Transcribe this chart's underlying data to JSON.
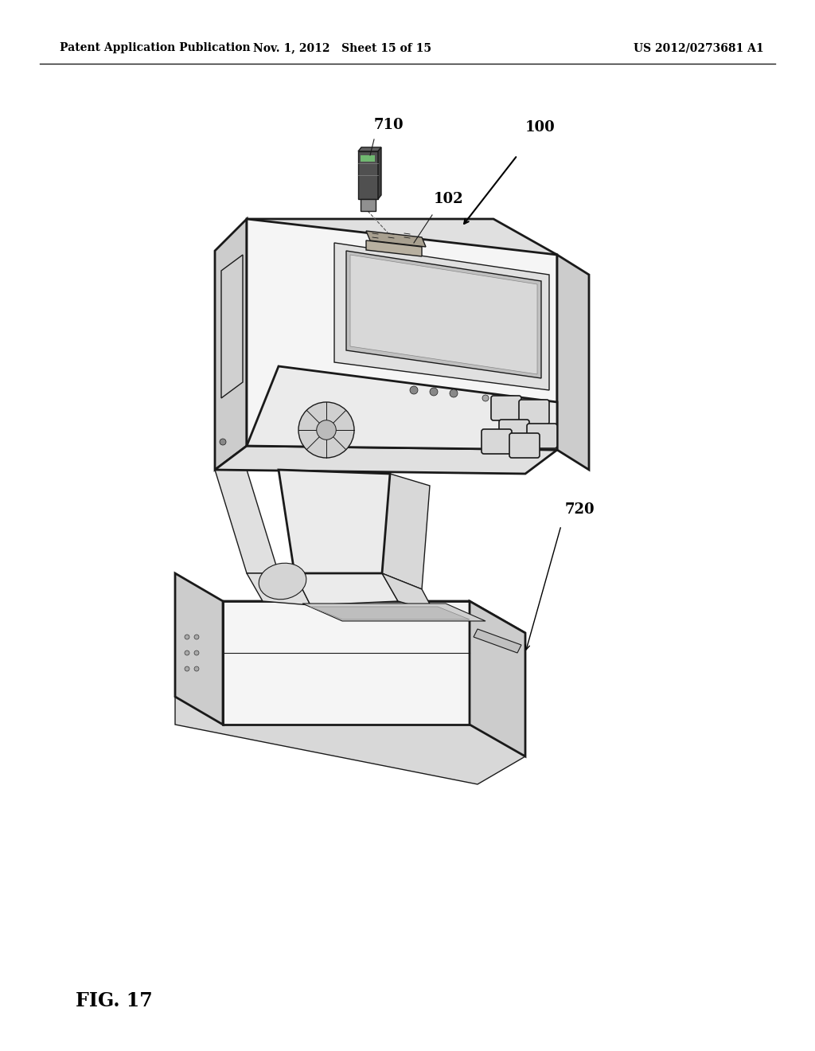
{
  "background_color": "#ffffff",
  "header_left": "Patent Application Publication",
  "header_center": "Nov. 1, 2012   Sheet 15 of 15",
  "header_right": "US 2012/0273681 A1",
  "figure_label": "FIG. 17",
  "text_color": "#000000",
  "line_color": "#1a1a1a",
  "face_light": "#f5f5f5",
  "face_mid": "#e0e0e0",
  "face_dark": "#cccccc",
  "face_darker": "#b8b8b8",
  "screen_color": "#c8c8c8",
  "usb_dark": "#444444",
  "usb_light": "#888888"
}
